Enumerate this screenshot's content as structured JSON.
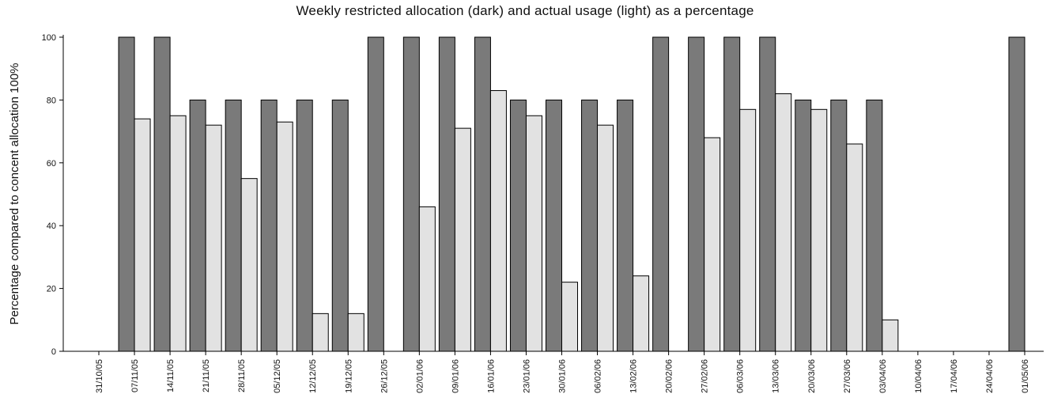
{
  "chart_data": {
    "type": "bar",
    "title": "Weekly restricted allocation (dark) and actual usage (light) as a percentage",
    "xlabel": "",
    "ylabel": "Percentage compared to concent allocation 100%",
    "ylim": [
      0,
      100
    ],
    "yticks": [
      0,
      20,
      40,
      60,
      80,
      100
    ],
    "grid": false,
    "categories": [
      "31/10/05",
      "07/11/05",
      "14/11/05",
      "21/11/05",
      "28/11/05",
      "05/12/05",
      "12/12/05",
      "19/12/05",
      "26/12/05",
      "02/01/06",
      "09/01/06",
      "16/01/06",
      "23/01/06",
      "30/01/06",
      "06/02/06",
      "13/02/06",
      "20/02/06",
      "27/02/06",
      "06/03/06",
      "13/03/06",
      "20/03/06",
      "27/03/06",
      "03/04/06",
      "10/04/06",
      "17/04/06",
      "24/04/06",
      "01/05/06"
    ],
    "series": [
      {
        "name": "dark",
        "color": "#7a7a7a",
        "values": [
          0,
          100,
          100,
          80,
          80,
          80,
          80,
          80,
          100,
          100,
          100,
          100,
          80,
          80,
          80,
          80,
          100,
          100,
          100,
          100,
          80,
          80,
          80,
          0,
          0,
          0,
          100
        ]
      },
      {
        "name": "light",
        "color": "#e2e2e2",
        "values": [
          0,
          74,
          75,
          72,
          55,
          73,
          12,
          12,
          0,
          46,
          71,
          83,
          75,
          22,
          72,
          24,
          0,
          68,
          77,
          82,
          77,
          66,
          10,
          0,
          0,
          0,
          0
        ]
      }
    ]
  }
}
